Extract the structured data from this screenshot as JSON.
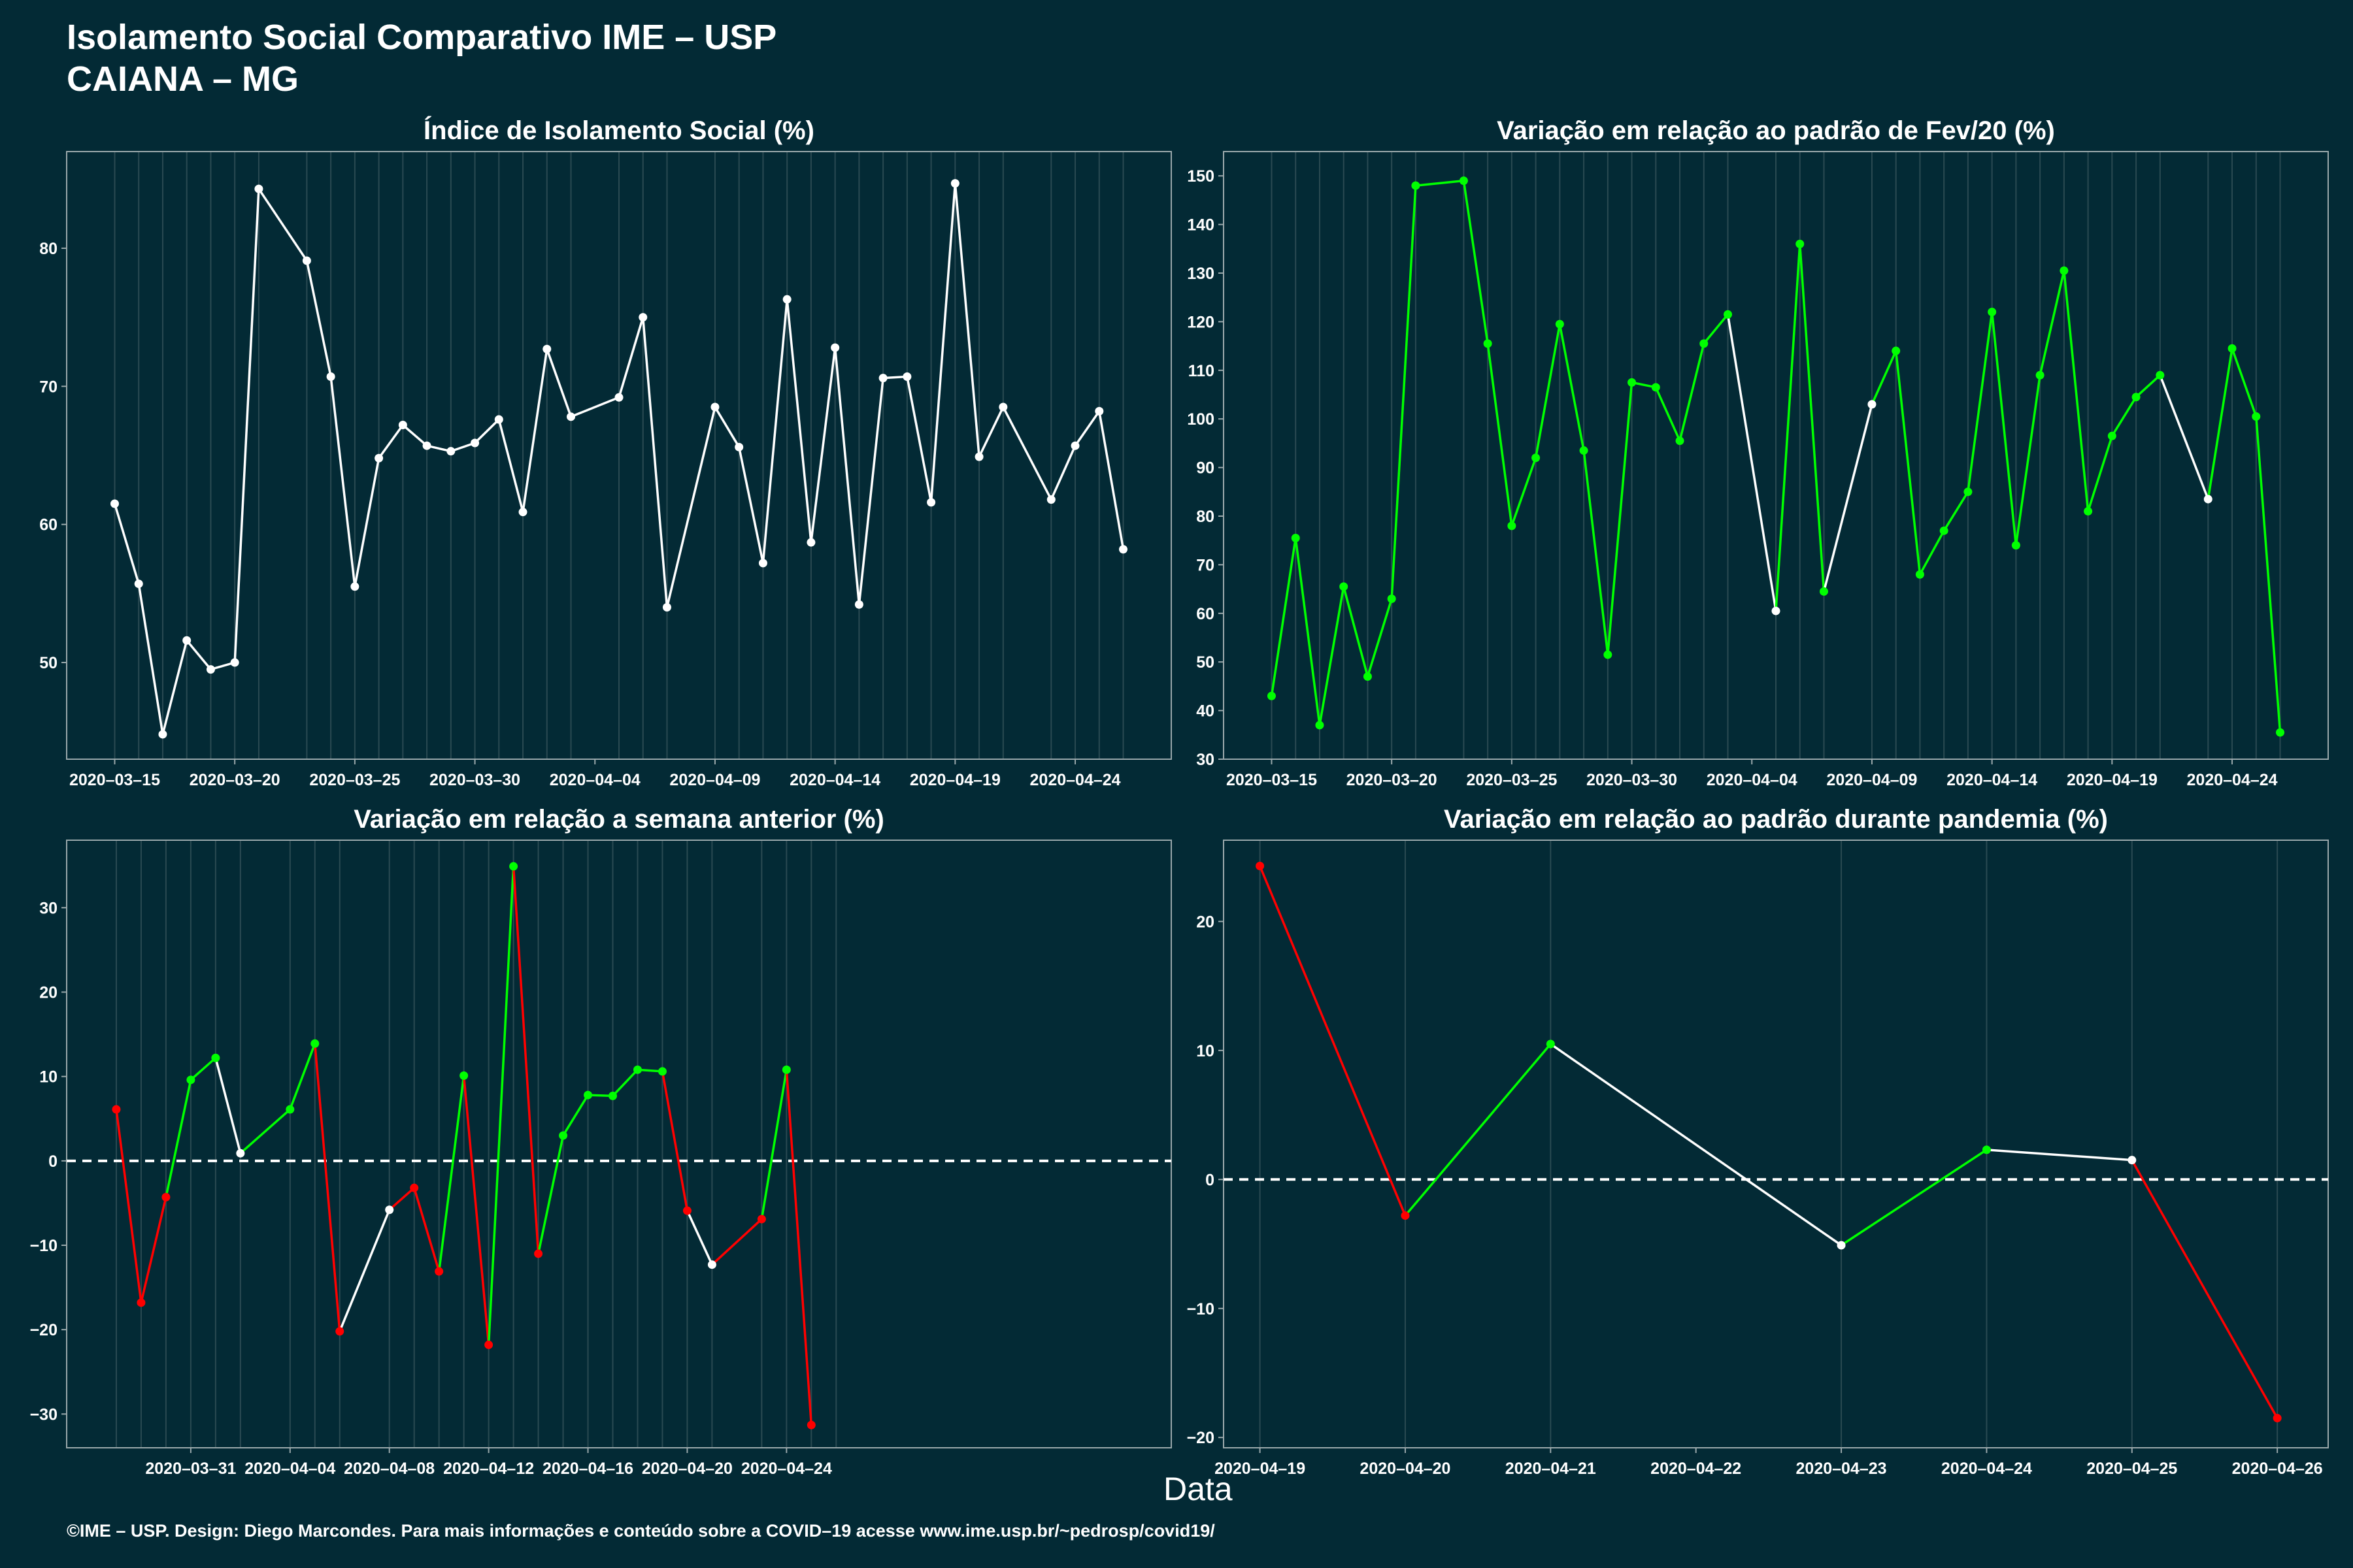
{
  "header": {
    "title": "Isolamento Social Comparativo IME – USP",
    "subtitle": "CAIANA – MG"
  },
  "xlabel": "Data",
  "caption": "©IME – USP. Design: Diego Marcondes. Para mais informações e conteúdo sobre a COVID–19 acesse www.ime.usp.br/~pedrosp/covid19/",
  "colors": {
    "background": "#032a35",
    "grid": "#2a4a52",
    "up": "#00ff00",
    "down": "#ff0000",
    "neutral": "#ffffff"
  },
  "chart_data": [
    {
      "id": "p1",
      "type": "line",
      "title": "Índice de Isolamento Social (%)",
      "xlim": [
        -2,
        44
      ],
      "ylim": [
        43,
        87
      ],
      "yticks": [
        50,
        60,
        70,
        80
      ],
      "xticks": [
        {
          "x": 0,
          "label": "2020–03–15"
        },
        {
          "x": 5,
          "label": "2020–03–20"
        },
        {
          "x": 10,
          "label": "2020–03–25"
        },
        {
          "x": 15,
          "label": "2020–03–30"
        },
        {
          "x": 20,
          "label": "2020–04–04"
        },
        {
          "x": 25,
          "label": "2020–04–09"
        },
        {
          "x": 30,
          "label": "2020–04–14"
        },
        {
          "x": 35,
          "label": "2020–04–19"
        },
        {
          "x": 40,
          "label": "2020–04–24"
        }
      ],
      "x": [
        0,
        1,
        2,
        3,
        4,
        5,
        6,
        8,
        9,
        10,
        11,
        12,
        13,
        14,
        15,
        16,
        17,
        18,
        19,
        21,
        22,
        23,
        25,
        26,
        27,
        28,
        29,
        30,
        31,
        32,
        33,
        34,
        35,
        36,
        37,
        39,
        40,
        41,
        42
      ],
      "values": [
        61.5,
        55.7,
        44.8,
        51.6,
        49.5,
        50.0,
        84.3,
        79.1,
        70.7,
        55.5,
        64.8,
        67.2,
        65.7,
        65.3,
        65.9,
        67.6,
        60.9,
        72.7,
        67.8,
        69.2,
        75.0,
        54.0,
        68.5,
        65.6,
        57.2,
        76.3,
        58.7,
        72.8,
        54.2,
        70.6,
        70.7,
        61.6,
        84.7,
        64.9,
        68.5,
        61.8,
        65.7,
        68.2,
        58.2
      ],
      "colors": [
        "neutral"
      ]
    },
    {
      "id": "p2",
      "type": "line",
      "title": "Variação em relação ao padrão de Fev/20 (%)",
      "xlim": [
        -2,
        44
      ],
      "ylim": [
        30,
        155
      ],
      "yticks": [
        30,
        40,
        50,
        60,
        70,
        80,
        90,
        100,
        110,
        120,
        130,
        140,
        150
      ],
      "xticks": [
        {
          "x": 0,
          "label": "2020–03–15"
        },
        {
          "x": 5,
          "label": "2020–03–20"
        },
        {
          "x": 10,
          "label": "2020–03–25"
        },
        {
          "x": 15,
          "label": "2020–03–30"
        },
        {
          "x": 20,
          "label": "2020–04–04"
        },
        {
          "x": 25,
          "label": "2020–04–09"
        },
        {
          "x": 30,
          "label": "2020–04–14"
        },
        {
          "x": 35,
          "label": "2020–04–19"
        },
        {
          "x": 40,
          "label": "2020–04–24"
        }
      ],
      "x": [
        0,
        1,
        2,
        3,
        4,
        5,
        6,
        8,
        9,
        10,
        11,
        12,
        13,
        14,
        15,
        16,
        17,
        18,
        19,
        21,
        22,
        23,
        25,
        26,
        27,
        28,
        29,
        30,
        31,
        32,
        33,
        34,
        35,
        36,
        37,
        39,
        40,
        41,
        42
      ],
      "values": [
        43,
        75.5,
        37,
        65.5,
        47,
        63,
        148,
        149,
        115.5,
        78,
        92,
        119.5,
        93.5,
        51.5,
        107.5,
        106.5,
        95.5,
        115.5,
        121.5,
        60.5,
        136,
        64.5,
        103,
        114,
        68,
        77,
        85,
        122,
        74,
        109,
        130.5,
        81,
        96.5,
        104.5,
        109,
        83.5,
        114.5,
        100.5,
        35.5
      ],
      "colors": [
        "up",
        "up",
        "up",
        "up",
        "up",
        "up",
        "up",
        "up",
        "up",
        "up",
        "up",
        "up",
        "up",
        "up",
        "up",
        "up",
        "up",
        "up",
        "neutral",
        "up",
        "up",
        "neutral",
        "up",
        "up",
        "up",
        "up",
        "up",
        "up",
        "up",
        "up",
        "up",
        "up",
        "up",
        "up",
        "neutral",
        "up",
        "up",
        "up"
      ]
    },
    {
      "id": "p3",
      "type": "line",
      "title": "Variação em relação a semana anterior (%)",
      "xlim": [
        -2,
        42.5
      ],
      "ylim": [
        -34,
        38
      ],
      "yticks": [
        -30,
        -20,
        -10,
        0,
        10,
        20,
        30
      ],
      "zero_line": true,
      "xticks": [
        {
          "x": 3,
          "label": "2020–03–31"
        },
        {
          "x": 7,
          "label": "2020–04–04"
        },
        {
          "x": 11,
          "label": "2020–04–08"
        },
        {
          "x": 15,
          "label": "2020–04–12"
        },
        {
          "x": 19,
          "label": "2020–04–16"
        },
        {
          "x": 23,
          "label": "2020–04–20"
        },
        {
          "x": 27,
          "label": "2020–04–24"
        }
      ],
      "x": [
        0,
        1,
        2,
        3,
        4,
        5,
        7,
        8,
        9,
        11,
        12,
        13,
        14,
        15,
        16,
        17,
        18,
        19,
        20,
        21,
        22,
        23,
        24,
        26,
        27,
        28,
        29
      ],
      "values": [
        6.1,
        -16.8,
        -4.3,
        9.6,
        12.2,
        0.9,
        6.1,
        13.9,
        -20.2,
        -5.8,
        -3.2,
        -13.1,
        10.1,
        -21.8,
        34.9,
        -11.0,
        3.0,
        7.8,
        7.7,
        10.8,
        10.6,
        -5.9,
        -12.3,
        -6.9,
        10.8,
        -31.3,
        null
      ],
      "colors": [
        "down",
        "down",
        "up",
        "up",
        "neutral",
        "up",
        "up",
        "down",
        "neutral",
        "down",
        "down",
        "up",
        "down",
        "up",
        "down",
        "up",
        "up",
        "up",
        "up",
        "up",
        "down",
        "neutral",
        "down",
        "up",
        "down"
      ]
    },
    {
      "id": "p4",
      "type": "line",
      "title": "Variação em relação ao padrão durante pandemia (%)",
      "xlim": [
        -0.25,
        7.35
      ],
      "ylim": [
        -20.8,
        26.3
      ],
      "yticks": [
        -20,
        -10,
        0,
        10,
        20
      ],
      "zero_line": true,
      "xticks": [
        {
          "x": 0,
          "label": "2020–04–19"
        },
        {
          "x": 1,
          "label": "2020–04–20"
        },
        {
          "x": 2,
          "label": "2020–04–21"
        },
        {
          "x": 3,
          "label": "2020–04–22"
        },
        {
          "x": 4,
          "label": "2020–04–23"
        },
        {
          "x": 5,
          "label": "2020–04–24"
        },
        {
          "x": 6,
          "label": "2020–04–25"
        },
        {
          "x": 7,
          "label": "2020–04–26"
        }
      ],
      "x": [
        0,
        1,
        2,
        4,
        5,
        6,
        7
      ],
      "values": [
        24.3,
        -2.8,
        10.5,
        -5.1,
        2.3,
        1.5,
        -18.5
      ],
      "colors": [
        "down",
        "up",
        "neutral",
        "up",
        "neutral",
        "down"
      ]
    }
  ]
}
